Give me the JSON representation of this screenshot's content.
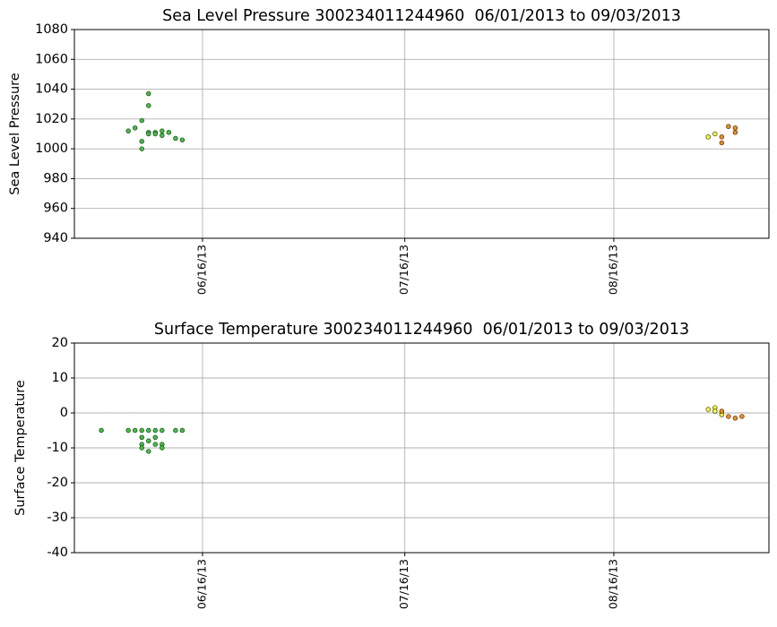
{
  "chart_data": [
    {
      "type": "scatter",
      "title": "Sea Level Pressure 300234011244960  06/01/2013 to 09/03/2013",
      "y_label": "Sea Level Pressure",
      "xlim": [
        "2013-05-28",
        "2013-09-08"
      ],
      "xticks": [
        {
          "value": "2013-06-16",
          "label": "06/16/13"
        },
        {
          "value": "2013-07-16",
          "label": "07/16/13"
        },
        {
          "value": "2013-08-16",
          "label": "08/16/13"
        }
      ],
      "ylim": [
        940,
        1080
      ],
      "yticks": [
        940,
        960,
        980,
        1000,
        1020,
        1040,
        1060,
        1080
      ],
      "grid": true,
      "series": [
        {
          "color": "#33cc33",
          "x": [
            "2013-06-05",
            "2013-06-06",
            "2013-06-07",
            "2013-06-07",
            "2013-06-07",
            "2013-06-08",
            "2013-06-08",
            "2013-06-08",
            "2013-06-08",
            "2013-06-09",
            "2013-06-09",
            "2013-06-10",
            "2013-06-10",
            "2013-06-11",
            "2013-06-12",
            "2013-06-13"
          ],
          "values": [
            1012,
            1014,
            1000,
            1005,
            1019,
            1011,
            1037,
            1029,
            1010,
            1011,
            1010,
            1012,
            1009,
            1011,
            1007,
            1006
          ]
        },
        {
          "color": "#ffff22",
          "x": [
            "2013-08-30",
            "2013-08-31"
          ],
          "values": [
            1008,
            1010
          ]
        },
        {
          "color": "#ff8c00",
          "x": [
            "2013-09-01",
            "2013-09-01",
            "2013-09-02",
            "2013-09-03",
            "2013-09-03"
          ],
          "values": [
            1004,
            1008,
            1015,
            1014,
            1011
          ]
        }
      ]
    },
    {
      "type": "scatter",
      "title": "Surface Temperature 300234011244960  06/01/2013 to 09/03/2013",
      "y_label": "Surface Temperature",
      "xlim": [
        "2013-05-28",
        "2013-09-08"
      ],
      "xticks": [
        {
          "value": "2013-06-16",
          "label": "06/16/13"
        },
        {
          "value": "2013-07-16",
          "label": "07/16/13"
        },
        {
          "value": "2013-08-16",
          "label": "08/16/13"
        }
      ],
      "ylim": [
        -40,
        20
      ],
      "yticks": [
        -40,
        -30,
        -20,
        -10,
        0,
        10,
        20
      ],
      "grid": true,
      "series": [
        {
          "color": "#33cc33",
          "x": [
            "2013-06-01",
            "2013-06-05",
            "2013-06-06",
            "2013-06-07",
            "2013-06-07",
            "2013-06-07",
            "2013-06-07",
            "2013-06-08",
            "2013-06-08",
            "2013-06-08",
            "2013-06-09",
            "2013-06-09",
            "2013-06-09",
            "2013-06-10",
            "2013-06-10",
            "2013-06-10",
            "2013-06-12",
            "2013-06-13"
          ],
          "values": [
            -5,
            -5,
            -5,
            -5,
            -7,
            -9,
            -10,
            -5,
            -8,
            -11,
            -5,
            -7,
            -9,
            -5,
            -9,
            -10,
            -5,
            -5
          ]
        },
        {
          "color": "#ffff22",
          "x": [
            "2013-08-30",
            "2013-08-31",
            "2013-08-31",
            "2013-09-01"
          ],
          "values": [
            1,
            1.5,
            0.5,
            -0.5
          ]
        },
        {
          "color": "#ff8c00",
          "x": [
            "2013-09-01",
            "2013-09-02",
            "2013-09-03",
            "2013-09-04"
          ],
          "values": [
            0.5,
            -1,
            -1.5,
            -1
          ]
        }
      ]
    }
  ]
}
